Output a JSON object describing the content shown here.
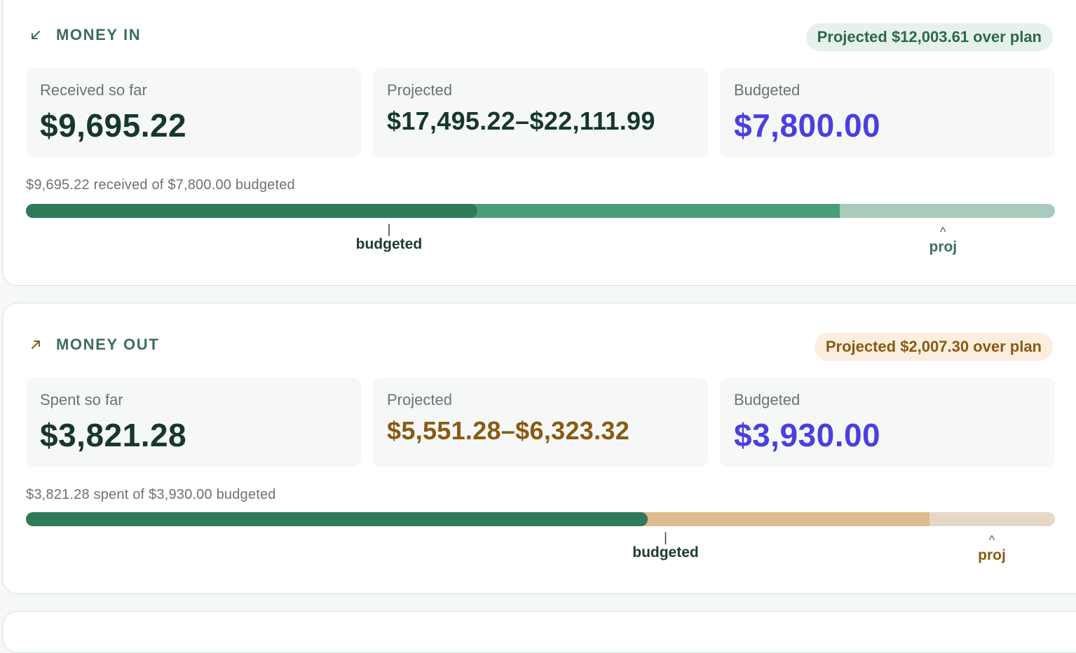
{
  "money_in": {
    "title": "MONEY IN",
    "icon": "arrow-down-left-icon",
    "pill": "Projected $12,003.61 over plan",
    "received_label": "Received so far",
    "received_value": "$9,695.22",
    "projected_label": "Projected",
    "projected_value": "$17,495.22–$22,111.99",
    "budgeted_label": "Budgeted",
    "budgeted_value": "$7,800.00",
    "caption": "$9,695.22 received of $7,800.00 budgeted",
    "progress": {
      "actual_fraction": 0.4385,
      "projected_low_fraction": 0.7912,
      "budget_marker_fraction": 0.3528,
      "proj_marker_fraction": 0.8912
    },
    "budget_marker_glyph": "|",
    "budget_marker_label": "budgeted",
    "proj_marker_glyph": "^",
    "proj_marker_label": "proj"
  },
  "money_out": {
    "title": "MONEY OUT",
    "icon": "arrow-up-right-icon",
    "pill": "Projected $2,007.30 over plan",
    "spent_label": "Spent so far",
    "spent_value": "$3,821.28",
    "projected_label": "Projected",
    "projected_value": "$5,551.28–$6,323.32",
    "budgeted_label": "Budgeted",
    "budgeted_value": "$3,930.00",
    "caption": "$3,821.28 spent of $3,930.00 budgeted",
    "progress": {
      "actual_fraction": 0.6043,
      "projected_low_fraction": 0.8779,
      "budget_marker_fraction": 0.6216,
      "proj_marker_fraction": 0.9387
    },
    "budget_marker_glyph": "|",
    "budget_marker_label": "budgeted",
    "proj_marker_glyph": "^",
    "proj_marker_label": "proj"
  },
  "colors": {
    "actual": "#2e7a59",
    "in_projected": "#4a9e79",
    "in_remaining": "#a8cbbc",
    "out_projected": "#dcbb8e",
    "out_remaining": "#e6d7c6",
    "budget_text": "#4a3fe0"
  }
}
